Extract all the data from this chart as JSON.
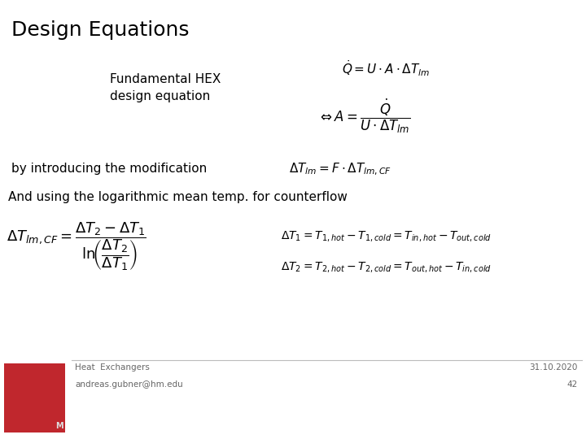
{
  "title": "Design Equations",
  "bg_color": "#ffffff",
  "text_color": "#000000",
  "footer_line_color": "#bbbbbb",
  "footer_text": "Heat  Exchangers",
  "footer_email": "andreas.gubner@hm.edu",
  "footer_date": "31.10.2020",
  "footer_page": "42",
  "label_fundamental": "Fundamental HEX\ndesign equation",
  "label_modification": "by introducing the modification",
  "label_logarithmic": "And using the logarithmic mean temp. for counterflow",
  "eq1": "$\\dot{Q} = U \\cdot A \\cdot \\Delta T_{lm}$",
  "eq2": "$\\Leftrightarrow A = \\dfrac{\\dot{Q}}{U \\cdot \\Delta T_{lm}}$",
  "eq3": "$\\Delta T_{lm} = F \\cdot \\Delta T_{lm,CF}$",
  "eq4_lhs": "$\\Delta T_{lm,CF} = \\dfrac{\\Delta T_2 - \\Delta T_1}{\\mathrm{ln}\\!\\left(\\dfrac{\\Delta T_2}{\\Delta T_1}\\right)}$",
  "eq5_line1": "$\\Delta T_1 = T_{1,hot} - T_{1,cold} = T_{in,hot} - T_{out,cold}$",
  "eq5_line2": "$\\Delta T_2 = T_{2,hot} - T_{2,cold} = T_{out,hot} - T_{in,cold}$",
  "title_fontsize": 18,
  "body_fontsize": 11,
  "eq_fontsize": 11,
  "eq4_fontsize": 13,
  "small_eq_fontsize": 10,
  "logo_color": "#c0272d"
}
